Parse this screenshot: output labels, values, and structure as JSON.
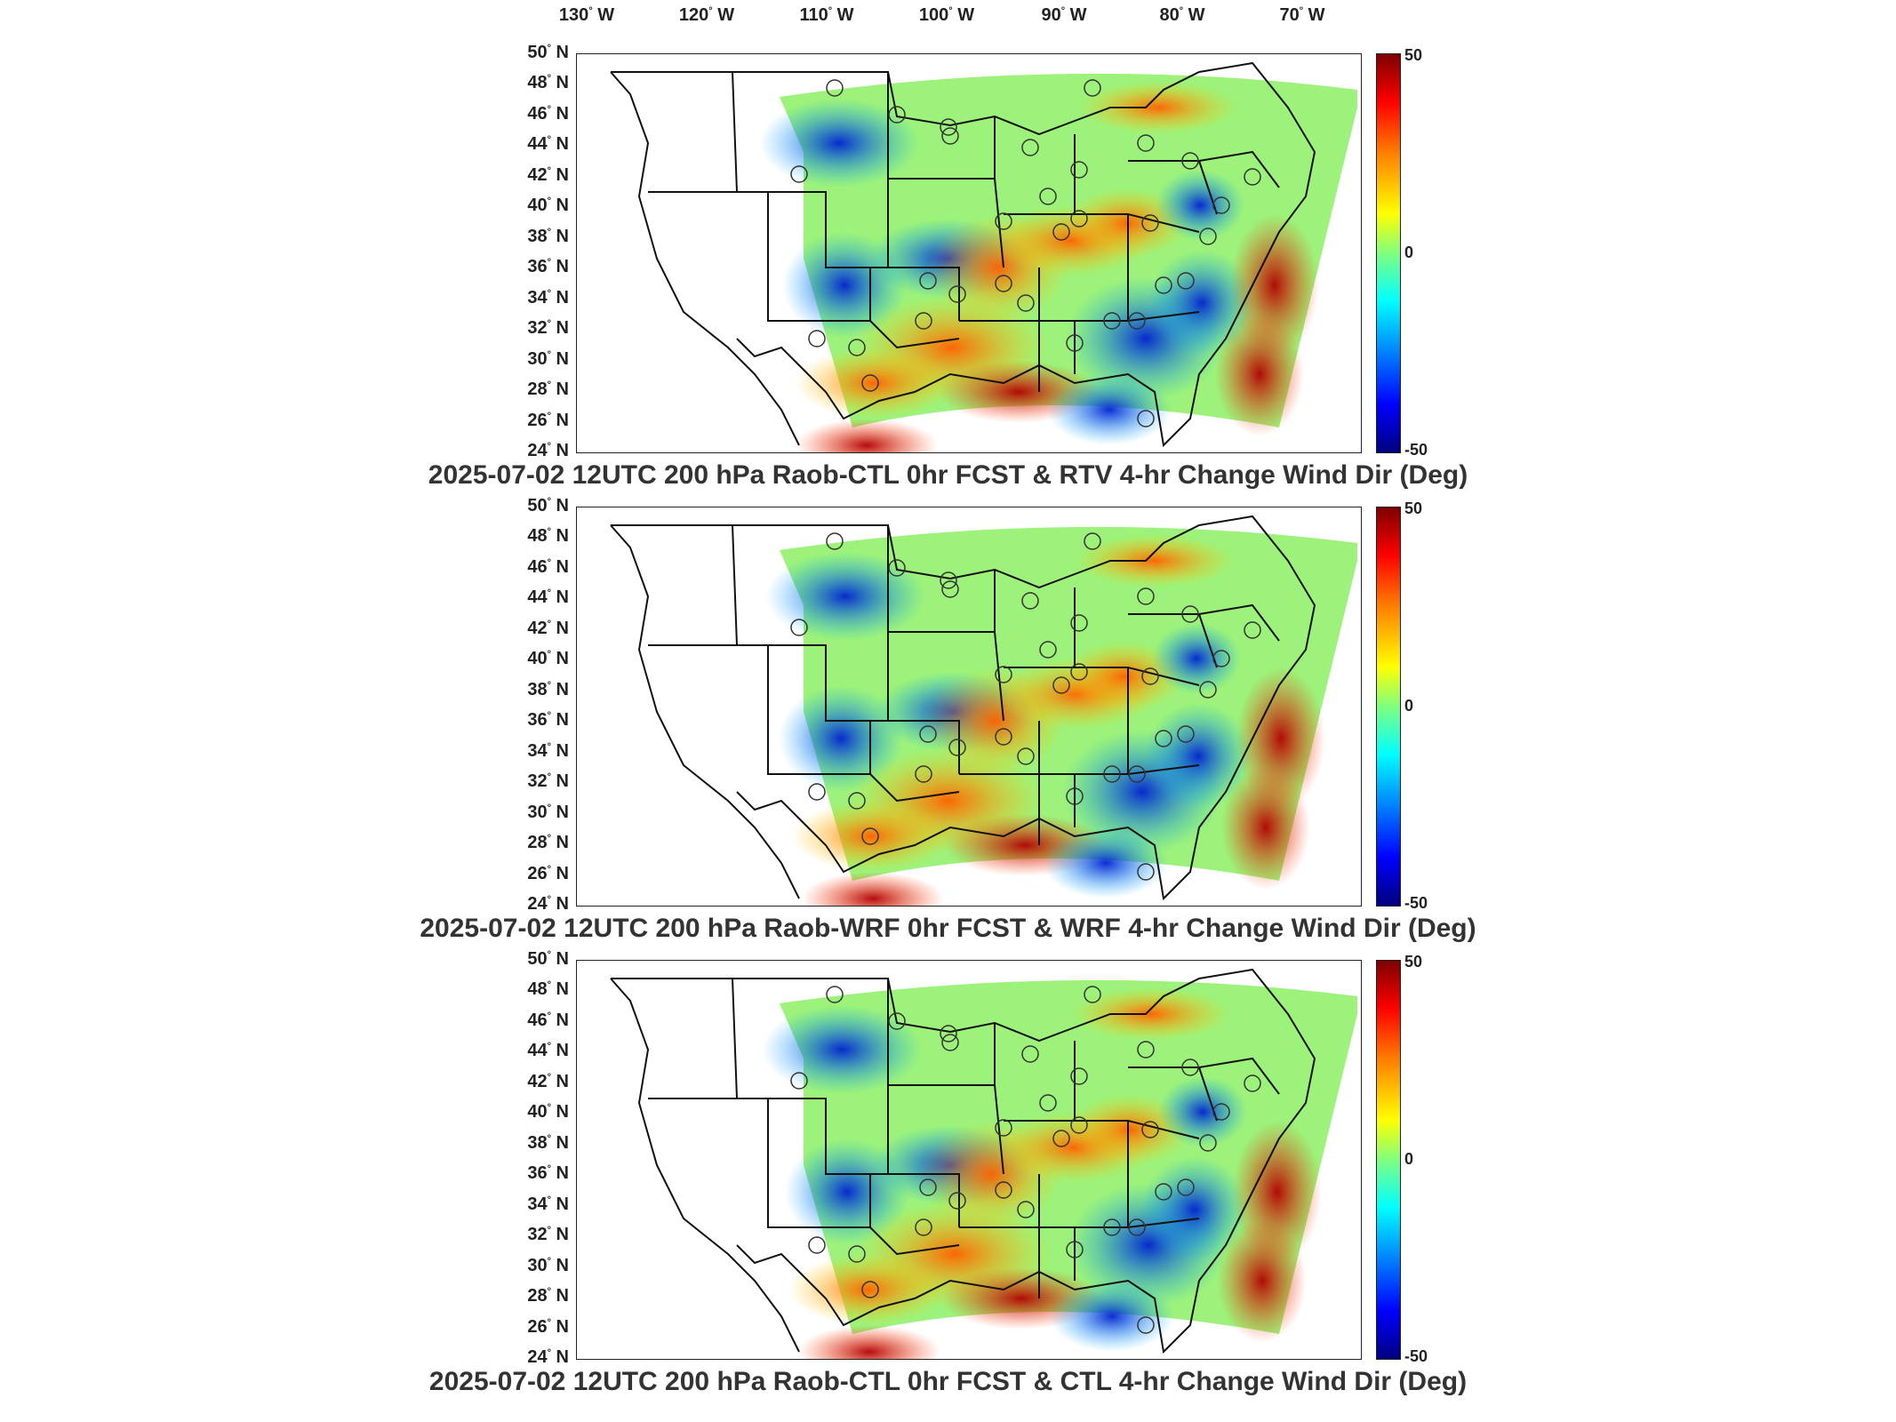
{
  "lon_labels": [
    {
      "text": "130",
      "suffix": "W"
    },
    {
      "text": "120",
      "suffix": "W"
    },
    {
      "text": "110",
      "suffix": "W"
    },
    {
      "text": "100",
      "suffix": "W"
    },
    {
      "text": "90",
      "suffix": "W"
    },
    {
      "text": "80",
      "suffix": "W"
    },
    {
      "text": "70",
      "suffix": "W"
    }
  ],
  "lat_labels": [
    "50",
    "48",
    "46",
    "44",
    "42",
    "40",
    "38",
    "36",
    "34",
    "32",
    "30",
    "28",
    "26",
    "24"
  ],
  "lat_suffix": "N",
  "degree": "°",
  "colorbar": {
    "max": "50",
    "mid": "0",
    "min": "-50"
  },
  "panels": [
    {
      "caption": "2025-07-02 12UTC 200 hPa Raob-CTL 0hr FCST & RTV 4-hr Change Wind Dir (Deg)"
    },
    {
      "caption": "2025-07-02 12UTC 200 hPa Raob-WRF 0hr FCST & WRF 4-hr Change Wind Dir (Deg)"
    },
    {
      "caption": "2025-07-02 12UTC 200 hPa Raob-CTL 0hr FCST & CTL 4-hr Change Wind Dir (Deg)"
    }
  ]
}
